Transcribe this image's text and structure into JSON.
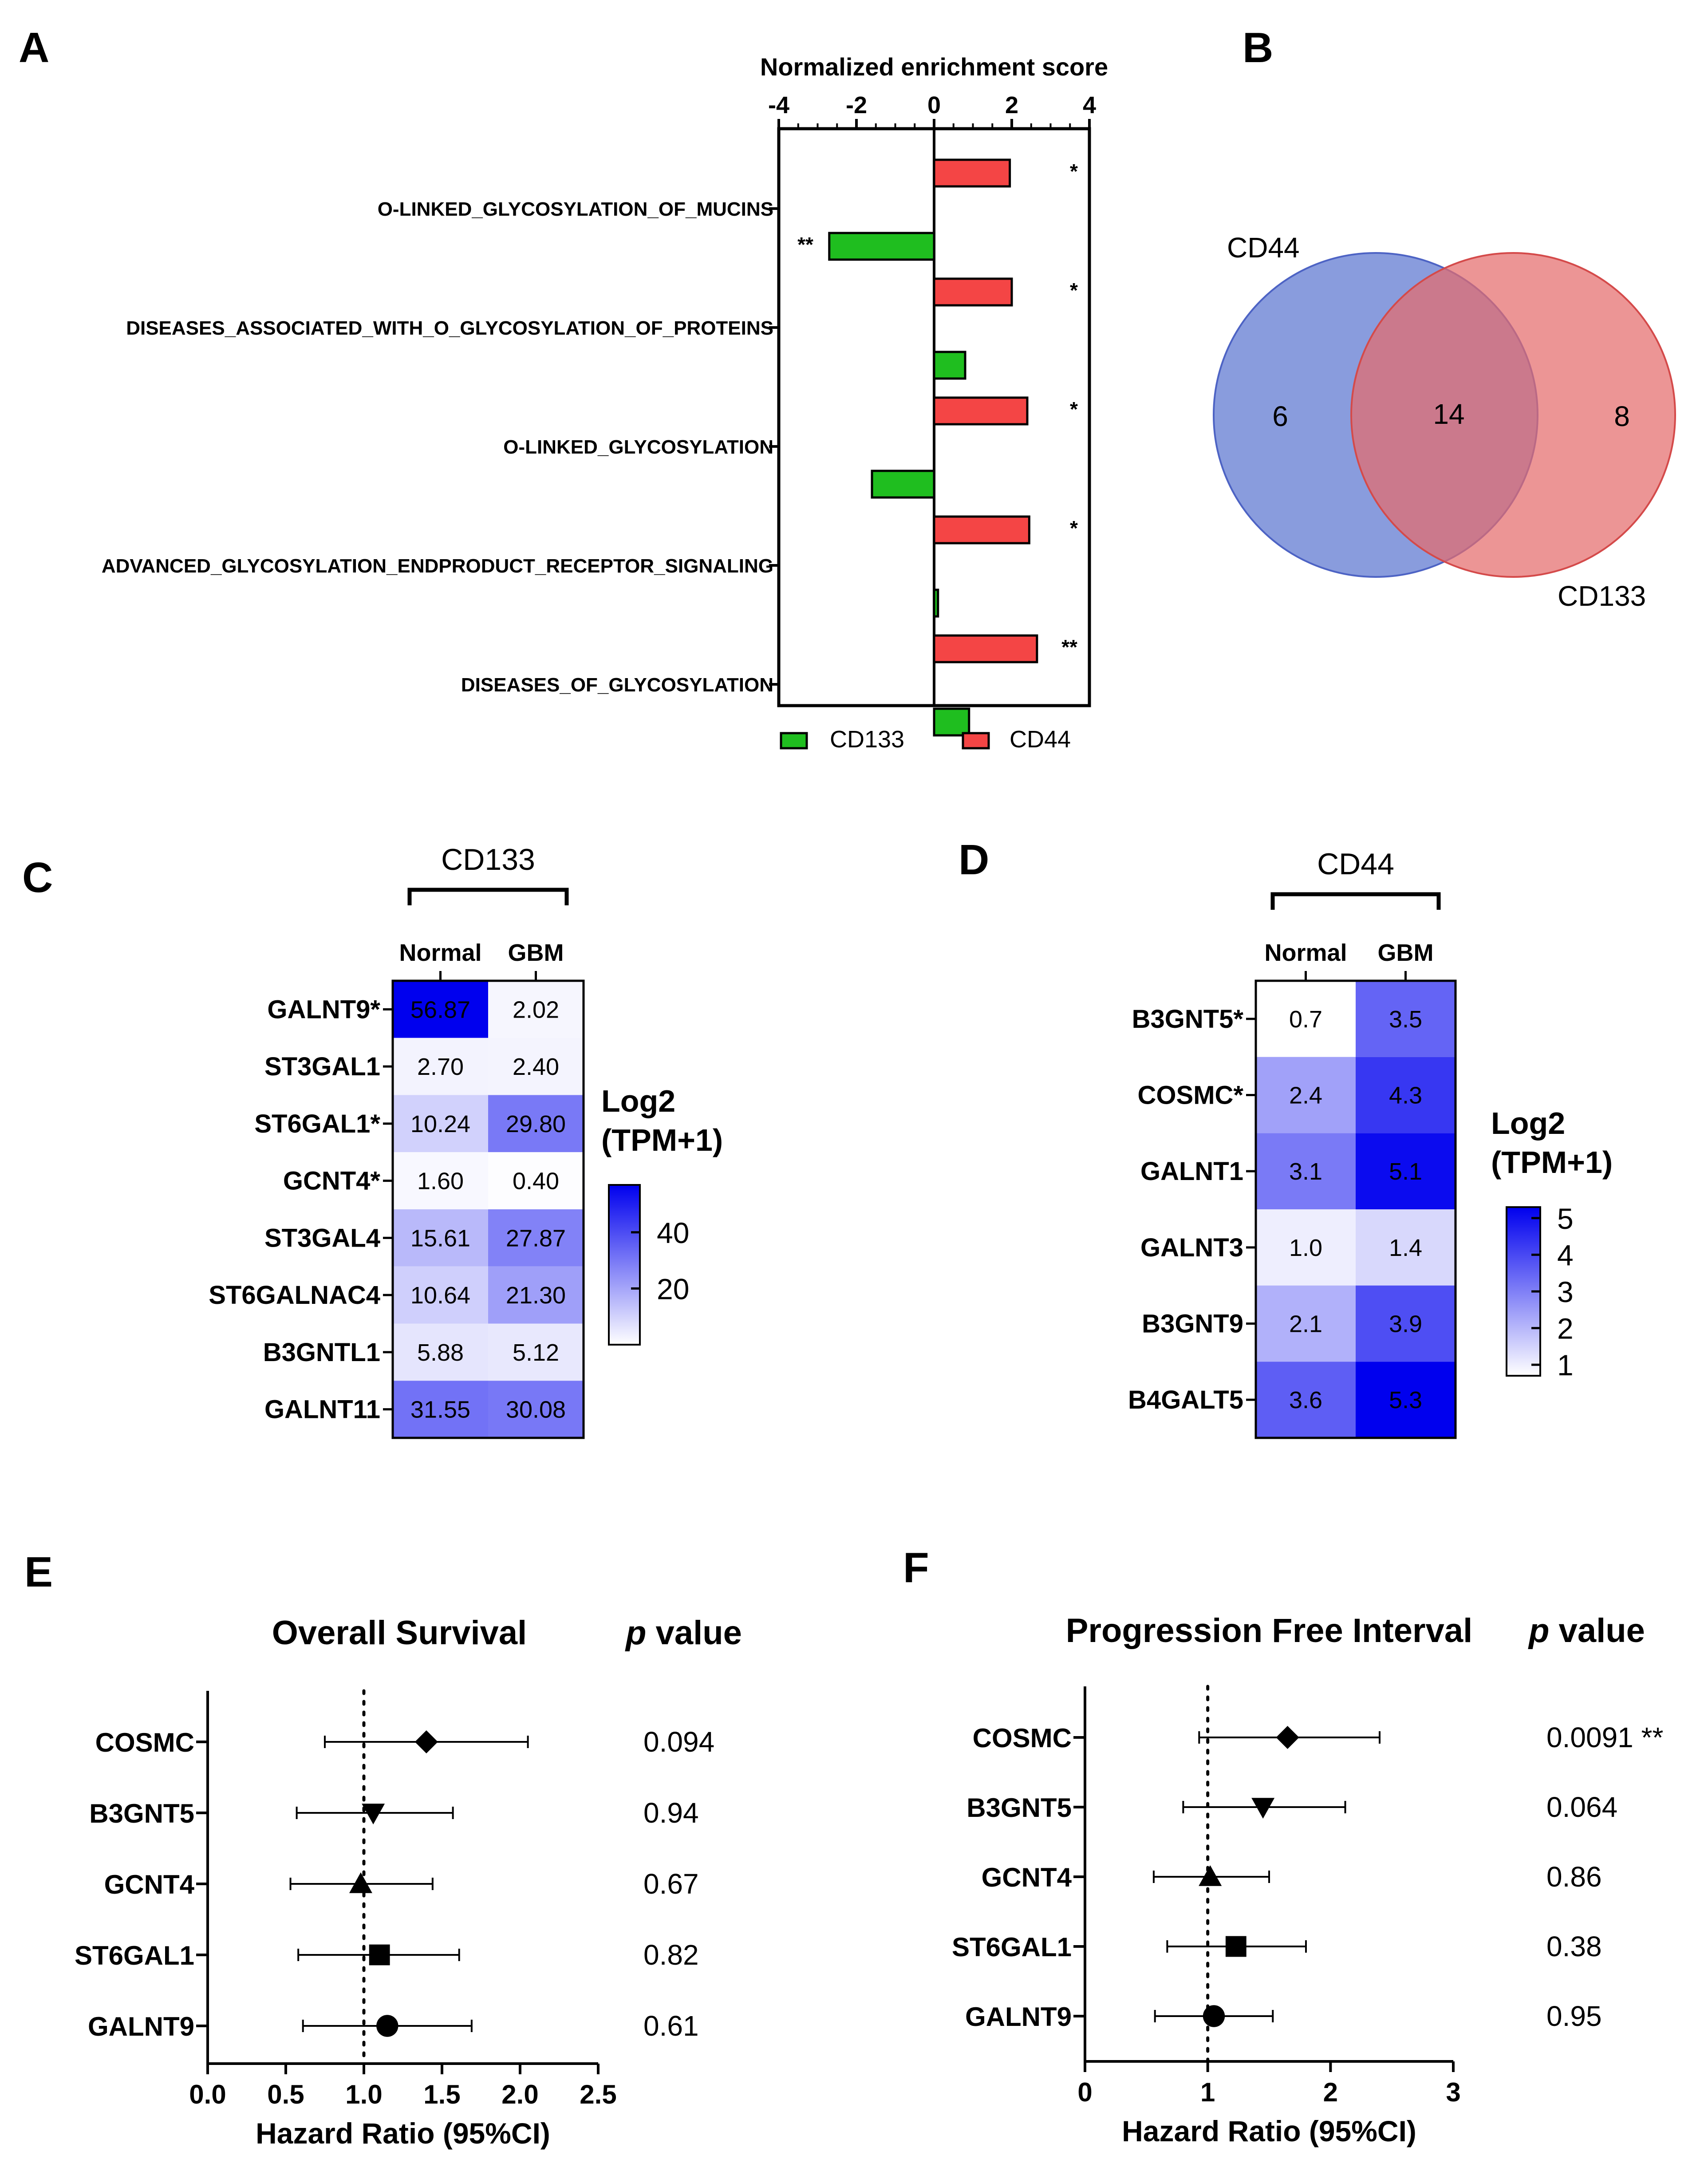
{
  "panels": {
    "A": "A",
    "B": "B",
    "C": "C",
    "D": "D",
    "E": "E",
    "F": "F"
  },
  "chart_data": [
    {
      "id": "A",
      "type": "bar",
      "orientation": "horizontal",
      "title": "Normalized enrichment score",
      "xlim": [
        -4,
        4
      ],
      "xticks": [
        "-4",
        "-2",
        "0",
        "2",
        "4"
      ],
      "categories": [
        "O-LINKED_GLYCOSYLATION_OF_MUCINS",
        "DISEASES_ASSOCIATED_WITH_O_GLYCOSYLATION_OF_PROTEINS",
        "O-LINKED_GLYCOSYLATION",
        "ADVANCED_GLYCOSYLATION_ENDPRODUCT_RECEPTOR_SIGNALING",
        "DISEASES_OF_GLYCOSYLATION"
      ],
      "series": [
        {
          "name": "CD44",
          "color": "#f44545",
          "values": [
            1.95,
            2.0,
            2.4,
            2.45,
            2.65
          ],
          "significance": [
            "*",
            "*",
            "*",
            "*",
            "**"
          ]
        },
        {
          "name": "CD133",
          "color": "#1fbe1f",
          "values": [
            -2.7,
            0.8,
            -1.6,
            0.1,
            0.9
          ],
          "significance": [
            "**",
            "",
            "",
            "",
            ""
          ]
        }
      ],
      "legend": [
        "CD133",
        "CD44"
      ],
      "legend_position": "bottom"
    },
    {
      "id": "B",
      "type": "venn",
      "sets": [
        {
          "name": "CD44",
          "only": "6",
          "color": "#6f86d6"
        },
        {
          "name": "CD133",
          "only": "8",
          "color": "#e46c6c"
        }
      ],
      "intersection": "14"
    },
    {
      "id": "C",
      "type": "heatmap",
      "title": "CD133",
      "columns": [
        "Normal",
        "GBM"
      ],
      "rows": [
        "GALNT9*",
        "ST3GAL1",
        "ST6GAL1*",
        "GCNT4*",
        "ST3GAL4",
        "ST6GALNAC4",
        "B3GNTL1",
        "GALNT11"
      ],
      "values": [
        [
          56.87,
          2.02
        ],
        [
          2.7,
          2.4
        ],
        [
          10.24,
          29.8
        ],
        [
          1.6,
          0.4
        ],
        [
          15.61,
          27.87
        ],
        [
          10.64,
          21.3
        ],
        [
          5.88,
          5.12
        ],
        [
          31.55,
          30.08
        ]
      ],
      "labels": [
        [
          "56.87",
          "2.02"
        ],
        [
          "2.70",
          "2.40"
        ],
        [
          "10.24",
          "29.80"
        ],
        [
          "1.60",
          "0.40"
        ],
        [
          "15.61",
          "27.87"
        ],
        [
          "10.64",
          "21.30"
        ],
        [
          "5.88",
          "5.12"
        ],
        [
          "31.55",
          "30.08"
        ]
      ],
      "scale_min": 0,
      "scale_max": 56.87,
      "colorbar_title": [
        "Log2",
        "(TPM+1)"
      ],
      "colorbar_ticks": [
        {
          "value": 40,
          "label": "40"
        },
        {
          "value": 20,
          "label": "20"
        }
      ]
    },
    {
      "id": "D",
      "type": "heatmap",
      "title": "CD44",
      "columns": [
        "Normal",
        "GBM"
      ],
      "rows": [
        "B3GNT5*",
        "COSMC*",
        "GALNT1",
        "GALNT3",
        "B3GNT9",
        "B4GALT5"
      ],
      "values": [
        [
          0.7,
          3.5
        ],
        [
          2.4,
          4.3
        ],
        [
          3.1,
          5.1
        ],
        [
          1.0,
          1.4
        ],
        [
          2.1,
          3.9
        ],
        [
          3.6,
          5.3
        ]
      ],
      "labels": [
        [
          "0.7",
          "3.5"
        ],
        [
          "2.4",
          "4.3"
        ],
        [
          "3.1",
          "5.1"
        ],
        [
          "1.0",
          "1.4"
        ],
        [
          "2.1",
          "3.9"
        ],
        [
          "3.6",
          "5.3"
        ]
      ],
      "scale_min": 0.7,
      "scale_max": 5.3,
      "colorbar_title": [
        "Log2",
        "(TPM+1)"
      ],
      "colorbar_ticks": [
        {
          "value": 5,
          "label": "5"
        },
        {
          "value": 4,
          "label": "4"
        },
        {
          "value": 3,
          "label": "3"
        },
        {
          "value": 2,
          "label": "2"
        },
        {
          "value": 1,
          "label": "1"
        }
      ]
    },
    {
      "id": "E",
      "type": "forest",
      "title": "Overall Survival",
      "pvalue_header": [
        "p",
        " value"
      ],
      "xlabel": "Hazard Ratio (95%CI)",
      "xlim": [
        0,
        2.5
      ],
      "xticks": [
        "0.0",
        "0.5",
        "1.0",
        "1.5",
        "2.0",
        "2.5"
      ],
      "reference_line": 1.0,
      "rows": [
        {
          "label": "COSMC",
          "hr": 1.4,
          "lo": 0.75,
          "hi": 2.05,
          "marker": "diamond",
          "p": "0.094"
        },
        {
          "label": "B3GNT5",
          "hr": 1.06,
          "lo": 0.57,
          "hi": 1.57,
          "marker": "triangle-down",
          "p": "0.94"
        },
        {
          "label": "GCNT4",
          "hr": 0.98,
          "lo": 0.53,
          "hi": 1.44,
          "marker": "triangle-up",
          "p": "0.67"
        },
        {
          "label": "ST6GAL1",
          "hr": 1.1,
          "lo": 0.58,
          "hi": 1.61,
          "marker": "square",
          "p": "0.82"
        },
        {
          "label": "GALNT9",
          "hr": 1.15,
          "lo": 0.61,
          "hi": 1.69,
          "marker": "circle",
          "p": "0.61"
        }
      ]
    },
    {
      "id": "F",
      "type": "forest",
      "title": "Progression Free Interval",
      "pvalue_header": [
        "p",
        " value"
      ],
      "xlabel": "Hazard Ratio (95%CI)",
      "xlim": [
        0,
        3
      ],
      "xticks": [
        "0",
        "1",
        "2",
        "3"
      ],
      "reference_line": 1.0,
      "rows": [
        {
          "label": "COSMC",
          "hr": 1.65,
          "lo": 0.93,
          "hi": 2.4,
          "marker": "diamond",
          "p": "0.0091 **"
        },
        {
          "label": "B3GNT5",
          "hr": 1.45,
          "lo": 0.8,
          "hi": 2.12,
          "marker": "triangle-down",
          "p": "0.064"
        },
        {
          "label": "GCNT4",
          "hr": 1.02,
          "lo": 0.56,
          "hi": 1.5,
          "marker": "triangle-up",
          "p": "0.86"
        },
        {
          "label": "ST6GAL1",
          "hr": 1.23,
          "lo": 0.67,
          "hi": 1.8,
          "marker": "square",
          "p": "0.38"
        },
        {
          "label": "GALNT9",
          "hr": 1.05,
          "lo": 0.57,
          "hi": 1.53,
          "marker": "circle",
          "p": "0.95"
        }
      ]
    }
  ]
}
